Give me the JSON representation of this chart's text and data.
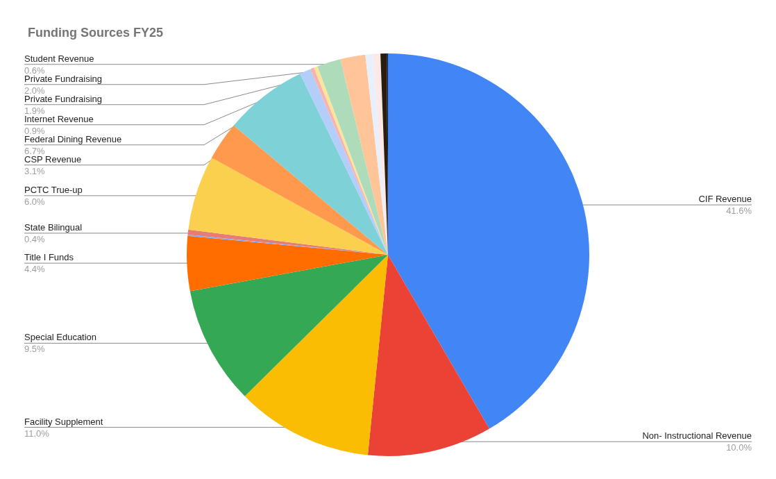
{
  "chart_data": {
    "type": "pie",
    "title": "Funding Sources FY25",
    "categories": [
      "CIF Revenue",
      "Non- Instructional Revenue",
      "Facility Supplement",
      "Special Education",
      "Title I Funds",
      null,
      "State Bilingual",
      "PCTC True-up",
      "CSP Revenue",
      "Federal Dining Revenue",
      "Internet Revenue",
      null,
      null,
      "Private Fundraising",
      "Private Fundraising",
      "Student Revenue",
      null,
      null,
      null
    ],
    "values": [
      41.6,
      10.0,
      11.0,
      9.5,
      4.4,
      0.1,
      0.4,
      6.0,
      3.1,
      6.7,
      0.9,
      0.3,
      0.3,
      1.9,
      2.0,
      0.6,
      0.6,
      0.5,
      0.1
    ],
    "value_labels": [
      "41.6%",
      "10.0%",
      "11.0%",
      "9.5%",
      "4.4%",
      null,
      "0.4%",
      "6.0%",
      "3.1%",
      "6.7%",
      "0.9%",
      null,
      null,
      "1.9%",
      "2.0%",
      "0.6%",
      null,
      null,
      null
    ],
    "colors": [
      "#4285f4",
      "#ea4335",
      "#fbbc04",
      "#34a853",
      "#ff6d01",
      "#7baaf7",
      "#e67c73",
      "#fcd04f",
      "#ff994d",
      "#7ed1d7",
      "#b3cefb",
      "#f7b4ae",
      "#fde49b",
      "#aedcba",
      "#ffc599",
      "#e8f0fe",
      "#fce8e6",
      "#2a1d0c",
      "#0b1f4f"
    ]
  }
}
